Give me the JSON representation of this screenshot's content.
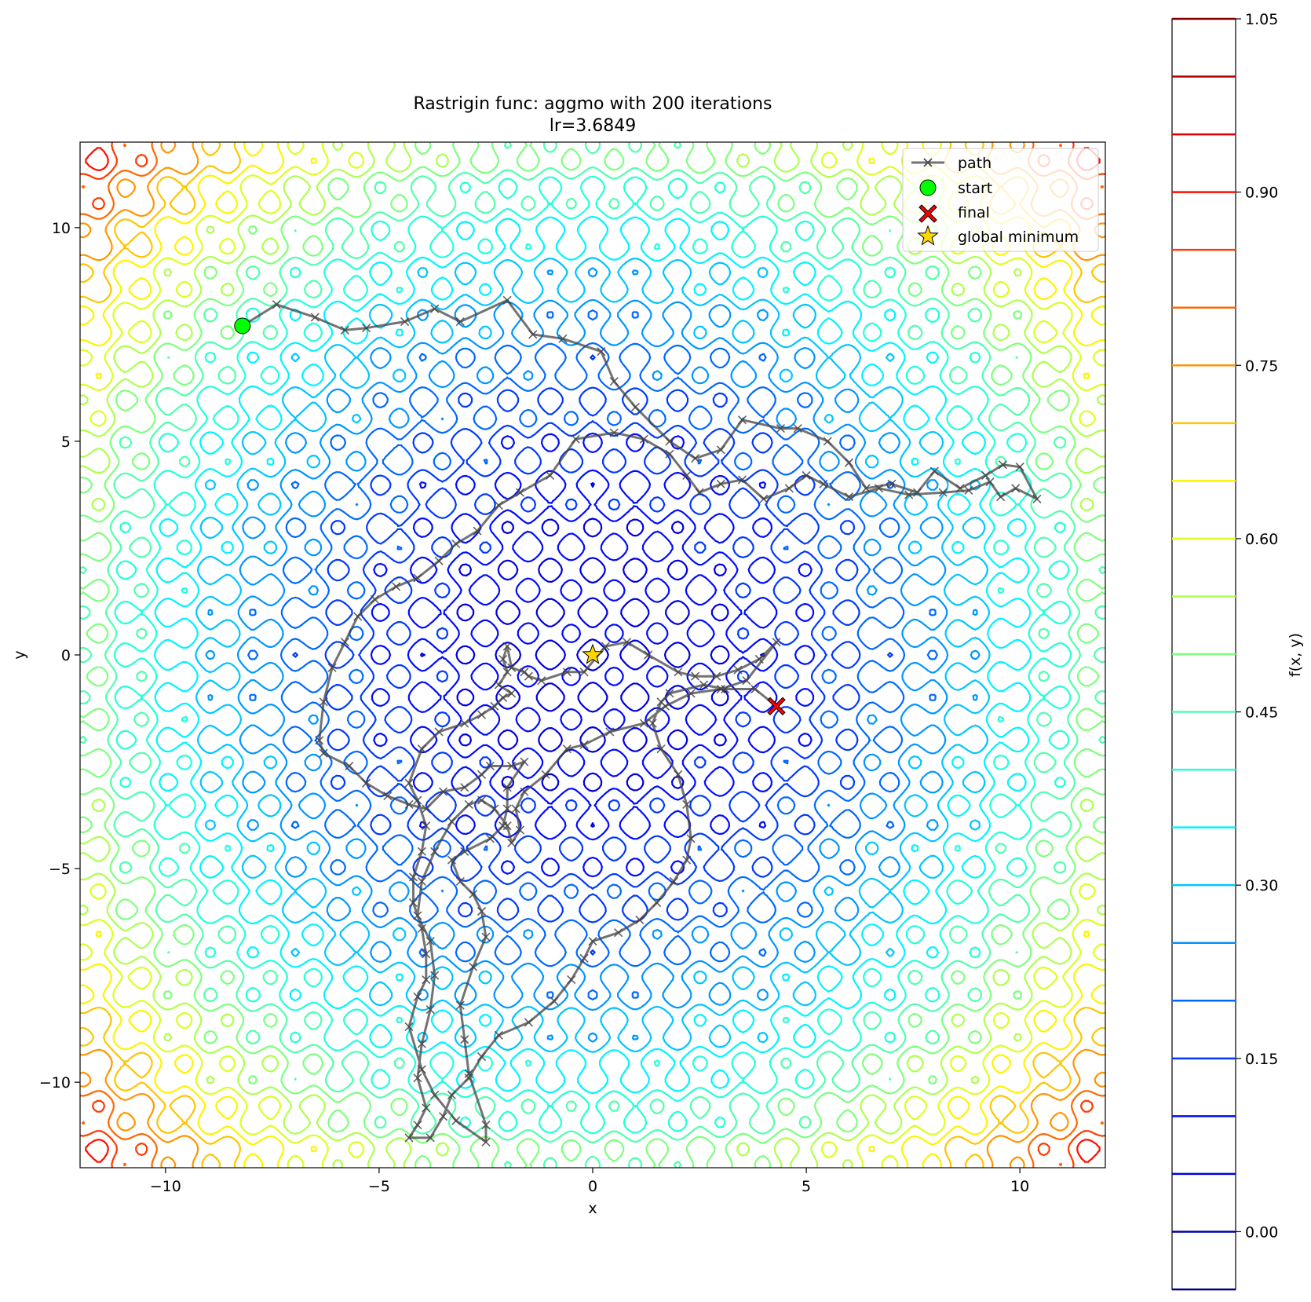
{
  "colors": {
    "contour_colormap": [
      "#00007f",
      "#0000ff",
      "#007fff",
      "#00ffff",
      "#7fff7f",
      "#ffff00",
      "#ff7f00",
      "#ff0000",
      "#7f0000"
    ],
    "path": "#444444",
    "start": "#00ff00",
    "final": "#ff0000",
    "global_minimum": "#ffd700"
  },
  "chart_data": {
    "type": "contour",
    "title": "Rastrigin func: aggmo with 200 iterations",
    "subtitle": "lr=3.6849",
    "xlabel": "x",
    "ylabel": "y",
    "xlim": [
      -12.0,
      12.0
    ],
    "ylim": [
      -12.0,
      12.0
    ],
    "x_ticks": [
      -10,
      -5,
      0,
      5,
      10
    ],
    "y_ticks": [
      -10,
      -5,
      0,
      5,
      10
    ],
    "x_tick_labels": [
      "−10",
      "−5",
      "0",
      "5",
      "10"
    ],
    "y_tick_labels": [
      "−10",
      "−5",
      "0",
      "5",
      "10"
    ],
    "grid": false,
    "legend_position": "top-right",
    "legend": [
      "path",
      "start",
      "final",
      "global minimum"
    ],
    "colorbar": {
      "label": "f(x, y)",
      "range": [
        -0.05,
        1.05
      ],
      "levels": [
        -0.05,
        0.0,
        0.05,
        0.1,
        0.15,
        0.2,
        0.25,
        0.3,
        0.35,
        0.4,
        0.45,
        0.5,
        0.55,
        0.6,
        0.65,
        0.7,
        0.75,
        0.8,
        0.85,
        0.9,
        0.95,
        1.0,
        1.05
      ],
      "ticks": [
        0.0,
        0.15,
        0.3,
        0.45,
        0.6,
        0.75,
        0.9,
        1.05
      ],
      "tick_labels": [
        "0.00",
        "0.15",
        "0.30",
        "0.45",
        "0.60",
        "0.75",
        "0.90",
        "1.05"
      ]
    },
    "start": [
      -8.2,
      7.7
    ],
    "final": [
      4.3,
      -1.2
    ],
    "global_minimum": [
      0.0,
      0.0
    ],
    "path": [
      [
        -8.2,
        7.7
      ],
      [
        -7.4,
        8.2
      ],
      [
        -6.5,
        7.9
      ],
      [
        -5.8,
        7.6
      ],
      [
        -5.3,
        7.65
      ],
      [
        -4.4,
        7.8
      ],
      [
        -3.7,
        8.1
      ],
      [
        -3.1,
        7.8
      ],
      [
        -2.0,
        8.3
      ],
      [
        -1.4,
        7.5
      ],
      [
        -0.7,
        7.4
      ],
      [
        0.2,
        7.1
      ],
      [
        0.5,
        6.4
      ],
      [
        1.0,
        5.8
      ],
      [
        1.8,
        5.0
      ],
      [
        2.4,
        4.6
      ],
      [
        3.0,
        4.8
      ],
      [
        3.5,
        5.5
      ],
      [
        4.4,
        5.3
      ],
      [
        4.8,
        5.3
      ],
      [
        5.5,
        5.0
      ],
      [
        6.0,
        4.5
      ],
      [
        6.4,
        3.9
      ],
      [
        7.0,
        4.0
      ],
      [
        7.6,
        3.8
      ],
      [
        8.0,
        4.3
      ],
      [
        8.6,
        3.9
      ],
      [
        9.2,
        4.2
      ],
      [
        9.6,
        4.45
      ],
      [
        10.0,
        4.4
      ],
      [
        10.4,
        3.65
      ],
      [
        9.9,
        3.9
      ],
      [
        9.55,
        3.7
      ],
      [
        9.3,
        4.05
      ],
      [
        8.8,
        3.85
      ],
      [
        8.2,
        3.8
      ],
      [
        7.4,
        3.75
      ],
      [
        6.7,
        3.9
      ],
      [
        6.0,
        3.7
      ],
      [
        5.4,
        4.0
      ],
      [
        5.0,
        4.2
      ],
      [
        4.6,
        3.9
      ],
      [
        4.0,
        3.65
      ],
      [
        3.5,
        4.1
      ],
      [
        3.0,
        4.0
      ],
      [
        2.5,
        3.8
      ],
      [
        2.2,
        4.2
      ],
      [
        1.8,
        4.7
      ],
      [
        1.2,
        5.05
      ],
      [
        0.5,
        5.2
      ],
      [
        -0.4,
        5.05
      ],
      [
        -1.0,
        4.2
      ],
      [
        -1.7,
        3.8
      ],
      [
        -2.2,
        3.5
      ],
      [
        -2.7,
        2.9
      ],
      [
        -3.2,
        2.6
      ],
      [
        -3.6,
        2.2
      ],
      [
        -4.1,
        1.8
      ],
      [
        -4.6,
        1.6
      ],
      [
        -5.1,
        1.3
      ],
      [
        -5.5,
        0.9
      ],
      [
        -5.8,
        0.3
      ],
      [
        -6.1,
        -0.3
      ],
      [
        -6.3,
        -1.1
      ],
      [
        -6.4,
        -2.0
      ],
      [
        -6.3,
        -2.3
      ],
      [
        -5.7,
        -2.6
      ],
      [
        -5.3,
        -3.0
      ],
      [
        -4.8,
        -3.3
      ],
      [
        -4.3,
        -3.5
      ],
      [
        -3.9,
        -3.6
      ],
      [
        -3.5,
        -3.2
      ],
      [
        -3.0,
        -3.1
      ],
      [
        -2.6,
        -2.8
      ],
      [
        -2.4,
        -2.6
      ],
      [
        -1.9,
        -2.6
      ],
      [
        -1.6,
        -2.5
      ],
      [
        -2.0,
        -3.1
      ],
      [
        -2.0,
        -3.6
      ],
      [
        -2.1,
        -4.0
      ],
      [
        -2.4,
        -4.3
      ],
      [
        -3.0,
        -4.6
      ],
      [
        -3.3,
        -4.8
      ],
      [
        -3.1,
        -5.3
      ],
      [
        -2.8,
        -5.6
      ],
      [
        -2.6,
        -6.0
      ],
      [
        -2.5,
        -6.6
      ],
      [
        -2.8,
        -7.3
      ],
      [
        -3.1,
        -8.2
      ],
      [
        -3.0,
        -9.0
      ],
      [
        -2.9,
        -9.8
      ],
      [
        -2.5,
        -11.0
      ],
      [
        -2.5,
        -11.4
      ],
      [
        -3.2,
        -10.9
      ],
      [
        -3.7,
        -10.3
      ],
      [
        -4.0,
        -9.7
      ],
      [
        -4.3,
        -8.7
      ],
      [
        -4.1,
        -8.0
      ],
      [
        -3.9,
        -7.6
      ],
      [
        -3.9,
        -7.0
      ],
      [
        -4.0,
        -6.4
      ],
      [
        -4.2,
        -5.8
      ],
      [
        -4.2,
        -5.2
      ],
      [
        -4.0,
        -4.6
      ],
      [
        -3.9,
        -4.0
      ],
      [
        -4.1,
        -3.4
      ],
      [
        -4.3,
        -3.0
      ],
      [
        -4.0,
        -2.2
      ],
      [
        -3.6,
        -1.8
      ],
      [
        -3.0,
        -1.6
      ],
      [
        -2.6,
        -1.4
      ],
      [
        -2.3,
        -1.2
      ],
      [
        -2.1,
        -1.0
      ],
      [
        -1.9,
        -0.9
      ],
      [
        -2.2,
        -0.7
      ],
      [
        -2.0,
        -0.4
      ],
      [
        -2.1,
        -0.1
      ],
      [
        -2.0,
        0.2
      ],
      [
        -1.9,
        -0.3
      ],
      [
        -1.6,
        -0.4
      ],
      [
        -1.5,
        -0.5
      ],
      [
        -1.2,
        -0.6
      ],
      [
        -0.6,
        -0.4
      ],
      [
        -0.2,
        -0.4
      ],
      [
        0.3,
        0.2
      ],
      [
        0.8,
        0.3
      ],
      [
        1.3,
        0.0
      ],
      [
        2.0,
        -0.4
      ],
      [
        2.4,
        -0.5
      ],
      [
        2.9,
        -0.5
      ],
      [
        3.4,
        -0.35
      ],
      [
        3.9,
        -0.1
      ],
      [
        4.3,
        0.3
      ],
      [
        3.6,
        -0.6
      ],
      [
        3.0,
        -0.8
      ],
      [
        2.3,
        -0.9
      ],
      [
        1.7,
        -1.2
      ],
      [
        1.2,
        -1.6
      ],
      [
        0.4,
        -1.8
      ],
      [
        -0.2,
        -2.1
      ],
      [
        -0.6,
        -2.2
      ],
      [
        -1.1,
        -2.8
      ],
      [
        -1.6,
        -3.2
      ],
      [
        -1.8,
        -3.6
      ],
      [
        -1.7,
        -4.1
      ],
      [
        -1.9,
        -4.4
      ],
      [
        -2.0,
        -4.0
      ],
      [
        -2.3,
        -3.6
      ],
      [
        -2.6,
        -3.4
      ],
      [
        -2.9,
        -3.5
      ],
      [
        -3.3,
        -3.9
      ],
      [
        -3.7,
        -4.6
      ],
      [
        -4.0,
        -5.3
      ],
      [
        -4.1,
        -6.1
      ],
      [
        -3.8,
        -6.7
      ],
      [
        -3.7,
        -7.5
      ],
      [
        -3.8,
        -8.3
      ],
      [
        -4.0,
        -9.1
      ],
      [
        -4.1,
        -9.9
      ],
      [
        -3.9,
        -10.6
      ],
      [
        -4.1,
        -11.0
      ],
      [
        -4.3,
        -11.3
      ],
      [
        -3.8,
        -11.3
      ],
      [
        -3.5,
        -10.8
      ],
      [
        -3.3,
        -10.3
      ],
      [
        -2.9,
        -9.9
      ],
      [
        -2.6,
        -9.4
      ],
      [
        -2.2,
        -8.9
      ],
      [
        -1.5,
        -8.6
      ],
      [
        -0.9,
        -8.1
      ],
      [
        -0.5,
        -7.6
      ],
      [
        -0.2,
        -7.1
      ],
      [
        0.0,
        -6.7
      ],
      [
        0.6,
        -6.5
      ],
      [
        1.1,
        -6.2
      ],
      [
        1.5,
        -5.8
      ],
      [
        1.9,
        -5.3
      ],
      [
        2.2,
        -4.8
      ],
      [
        2.3,
        -4.3
      ],
      [
        2.2,
        -3.5
      ],
      [
        2.0,
        -2.8
      ],
      [
        1.6,
        -2.2
      ],
      [
        1.4,
        -1.6
      ],
      [
        1.6,
        -1.1
      ],
      [
        1.8,
        -0.9
      ],
      [
        2.6,
        -0.7
      ],
      [
        3.1,
        -0.8
      ],
      [
        3.8,
        -0.8
      ],
      [
        4.3,
        -1.2
      ]
    ]
  }
}
